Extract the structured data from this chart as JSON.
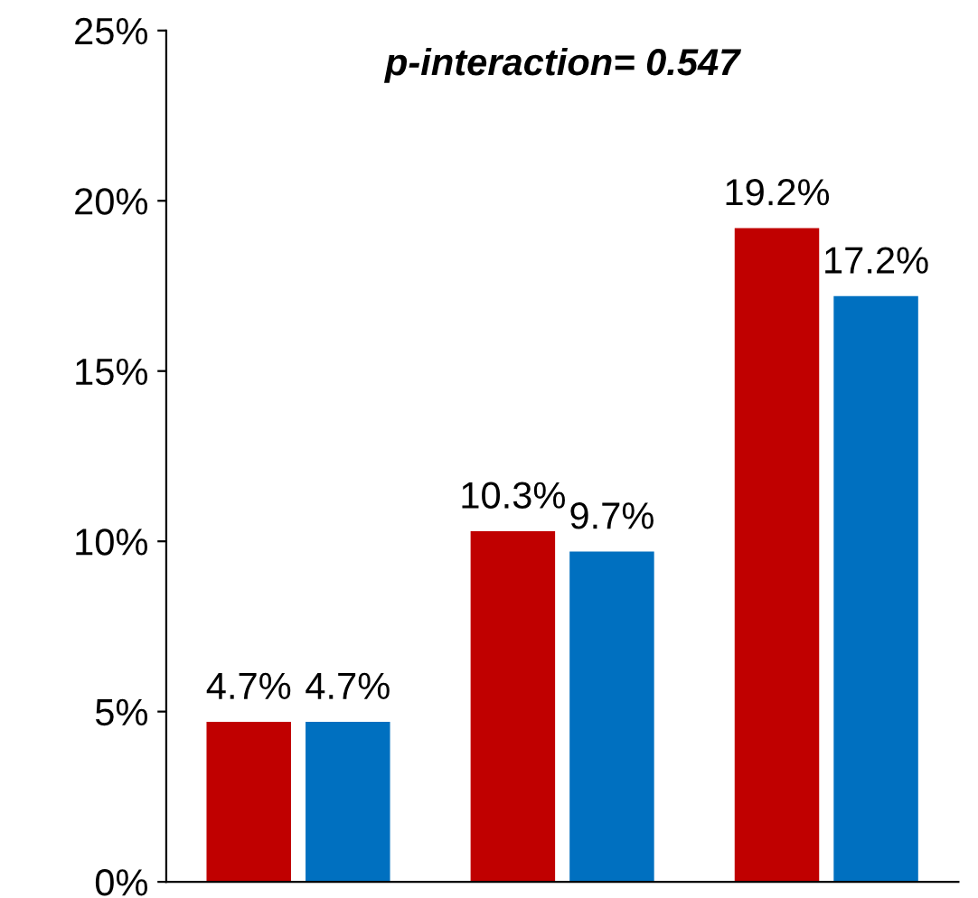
{
  "chart_data": {
    "type": "bar",
    "title": "p-interaction= 0.547",
    "categories": [
      null,
      null,
      null
    ],
    "series": [
      {
        "color": "#c00000",
        "values": [
          4.7,
          10.3,
          19.2
        ],
        "value_labels": [
          "4.7%",
          "10.3%",
          "19.2%"
        ]
      },
      {
        "color": "#0070c0",
        "values": [
          4.7,
          9.7,
          17.2
        ],
        "value_labels": [
          "4.7%",
          "9.7%",
          "17.2%"
        ]
      }
    ],
    "ylim": [
      0,
      25
    ],
    "yticks": [
      {
        "value": 0,
        "label": "0%"
      },
      {
        "value": 5,
        "label": "5%"
      },
      {
        "value": 10,
        "label": "10%"
      },
      {
        "value": 15,
        "label": "15%"
      },
      {
        "value": 20,
        "label": "20%"
      },
      {
        "value": 25,
        "label": "25%"
      }
    ],
    "grid": false,
    "legend": false
  }
}
